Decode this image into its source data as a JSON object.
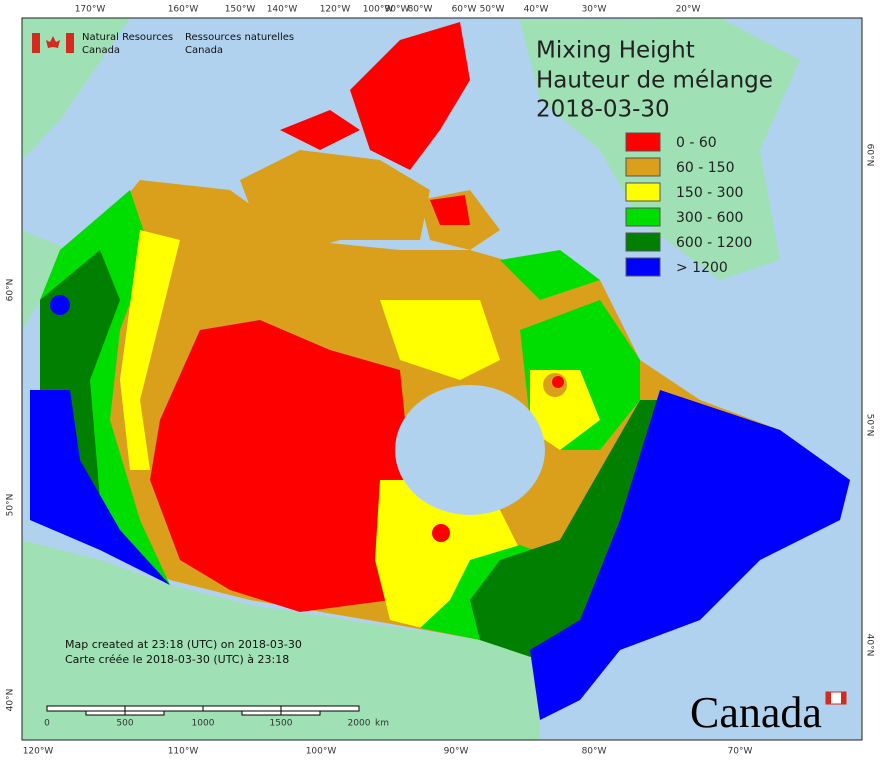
{
  "header": {
    "agency_en": [
      "Natural Resources",
      "Canada"
    ],
    "agency_fr": [
      "Ressources naturelles",
      "Canada"
    ]
  },
  "title": [
    "Mixing Height",
    "Hauteur de mélange",
    "2018-03-30"
  ],
  "legend": [
    {
      "label": "0 - 60",
      "color": "#ff0000"
    },
    {
      "label": "60 - 150",
      "color": "#daa01c"
    },
    {
      "label": "150 - 300",
      "color": "#ffff00"
    },
    {
      "label": "300 - 600",
      "color": "#00dd00"
    },
    {
      "label": "600 - 1200",
      "color": "#007f00"
    },
    {
      "label": "> 1200",
      "color": "#0000ff"
    }
  ],
  "graticule": {
    "top": [
      "170°W",
      "160°W",
      "150°W",
      "140°W",
      "120°W",
      "100°W",
      "90°W",
      "80°W",
      "60°W",
      "50°W",
      "40°W",
      "30°W",
      "20°W"
    ],
    "bottom": [
      "120°W",
      "110°W",
      "100°W",
      "90°W",
      "80°W",
      "70°W"
    ],
    "left": [
      "60°N",
      "50°N",
      "40°N"
    ],
    "right": [
      "60°N",
      "50°N",
      "40°N"
    ]
  },
  "footer": {
    "created_en": "Map created at 23:18 (UTC) on 2018-03-30",
    "created_fr": "Carte créée le 2018-03-30 (UTC) à 23:18"
  },
  "scale_bar": {
    "labels": [
      "0",
      "500",
      "1000",
      "1500",
      "2000"
    ],
    "unit": "km"
  },
  "wordmark": "Canada"
}
